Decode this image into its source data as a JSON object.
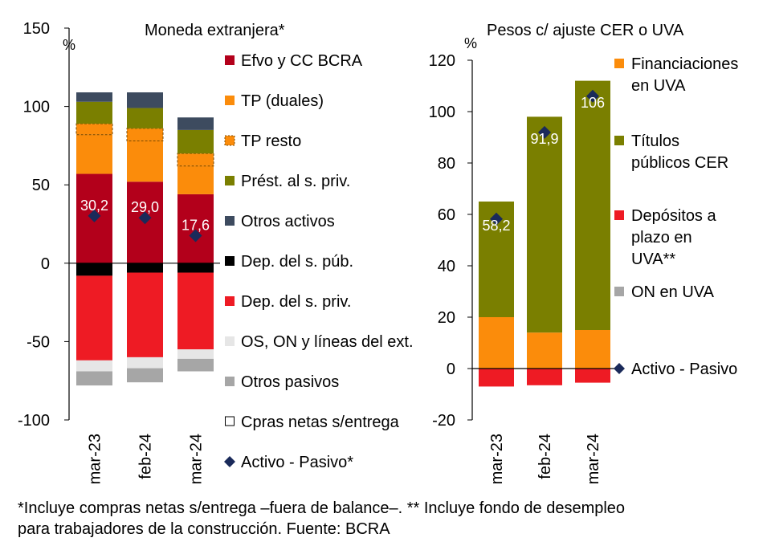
{
  "chart_data": [
    {
      "type": "bar",
      "stacked": true,
      "title": "Moneda extranjera*",
      "ylabel": "%",
      "ylim": [
        -100,
        150
      ],
      "yticks": [
        150,
        100,
        50,
        0,
        -50,
        -100
      ],
      "categories": [
        "mar-23",
        "feb-24",
        "mar-24"
      ],
      "series": [
        {
          "name": "Efvo y CC BCRA",
          "color": "#b3001b",
          "values": [
            57,
            52,
            44
          ]
        },
        {
          "name": "TP (duales)",
          "color": "#fb8c0b",
          "values": [
            25,
            26,
            18
          ]
        },
        {
          "name": "TP resto",
          "color": "#fb8c0b",
          "values": [
            7,
            8,
            8
          ]
        },
        {
          "name": "Prést. al s. priv.",
          "color": "#7a7f00",
          "values": [
            14,
            13,
            15
          ]
        },
        {
          "name": "Otros activos",
          "color": "#3d4b5f",
          "values": [
            6,
            10,
            8
          ]
        },
        {
          "name": "Dep. del s. púb.",
          "color": "#000000",
          "values": [
            -8,
            -6,
            -6
          ]
        },
        {
          "name": "Dep. del s. priv.",
          "color": "#ee1b24",
          "values": [
            -54,
            -54,
            -49
          ]
        },
        {
          "name": "OS, ON y líneas del ext.",
          "color": "#e6e6e6",
          "values": [
            -7,
            -7,
            -6
          ]
        },
        {
          "name": "Otros pasivos",
          "color": "#a6a6a6",
          "values": [
            -9,
            -9,
            -8
          ]
        },
        {
          "name": "Cpras netas s/entrega",
          "color": "#ffffff",
          "values": [
            0,
            0,
            0
          ]
        }
      ],
      "net": {
        "name": "Activo - Pasivo*",
        "color": "#1a2a5a",
        "values": [
          30.2,
          29.0,
          17.6
        ]
      },
      "data_labels": [
        "30,2",
        "29,0",
        "17,6"
      ]
    },
    {
      "type": "bar",
      "stacked": true,
      "title": "Pesos c/ ajuste  CER o UVA",
      "ylabel": "%",
      "ylim": [
        -20,
        120
      ],
      "yticks": [
        120,
        100,
        80,
        60,
        40,
        20,
        0,
        -20
      ],
      "categories": [
        "mar-23",
        "feb-24",
        "mar-24"
      ],
      "series": [
        {
          "name": "Financiaciones en UVA",
          "color": "#fb8c0b",
          "values": [
            20,
            14,
            15
          ]
        },
        {
          "name": "Títulos públicos CER",
          "color": "#7a7f00",
          "values": [
            45,
            84,
            97
          ]
        },
        {
          "name": "Depósitos a plazo en UVA**",
          "color": "#ee1b24",
          "values": [
            -7,
            -6.5,
            -5.5
          ]
        },
        {
          "name": "ON en UVA",
          "color": "#a6a6a6",
          "values": [
            0,
            0,
            0
          ]
        }
      ],
      "net": {
        "name": "Activo - Pasivo",
        "color": "#1a2a5a",
        "values": [
          58.2,
          91.9,
          106
        ]
      },
      "data_labels": [
        "58,2",
        "91,9",
        "106"
      ]
    }
  ],
  "legend_left": [
    {
      "label": "Efvo y CC BCRA",
      "icon": "square",
      "color": "#b3001b"
    },
    {
      "label": "TP (duales)",
      "icon": "square",
      "color": "#fb8c0b"
    },
    {
      "label": "TP resto",
      "icon": "dashed-square",
      "color": "#fb8c0b"
    },
    {
      "label": "Prést. al s. priv.",
      "icon": "square",
      "color": "#7a7f00"
    },
    {
      "label": "Otros activos",
      "icon": "square",
      "color": "#3d4b5f"
    },
    {
      "label": "Dep. del s. púb.",
      "icon": "square",
      "color": "#000000"
    },
    {
      "label": "Dep. del s. priv.",
      "icon": "square",
      "color": "#ee1b24"
    },
    {
      "label": "OS, ON y líneas del ext.",
      "icon": "square",
      "color": "#e6e6e6"
    },
    {
      "label": "Otros pasivos",
      "icon": "square",
      "color": "#a6a6a6"
    },
    {
      "label": "Cpras netas s/entrega",
      "icon": "outline-square",
      "color": "#ffffff"
    },
    {
      "label": "Activo - Pasivo*",
      "icon": "diamond",
      "color": "#1a2a5a"
    }
  ],
  "legend_right": [
    {
      "lines": [
        "Financiaciones",
        "en UVA"
      ],
      "icon": "square",
      "color": "#fb8c0b"
    },
    {
      "lines": [
        "Títulos",
        "públicos CER"
      ],
      "icon": "square",
      "color": "#7a7f00"
    },
    {
      "lines": [
        "Depósitos a",
        "plazo en",
        "UVA**"
      ],
      "icon": "square",
      "color": "#ee1b24"
    },
    {
      "lines": [
        "ON en UVA"
      ],
      "icon": "square",
      "color": "#a6a6a6"
    },
    {
      "lines": [
        "Activo - Pasivo"
      ],
      "icon": "diamond",
      "color": "#1a2a5a"
    }
  ],
  "footnote": {
    "line1": "*Incluye compras netas s/entrega –fuera de balance–. ** Incluye fondo de desempleo",
    "line2": "para trabajadores de la construcción. Fuente: BCRA"
  }
}
